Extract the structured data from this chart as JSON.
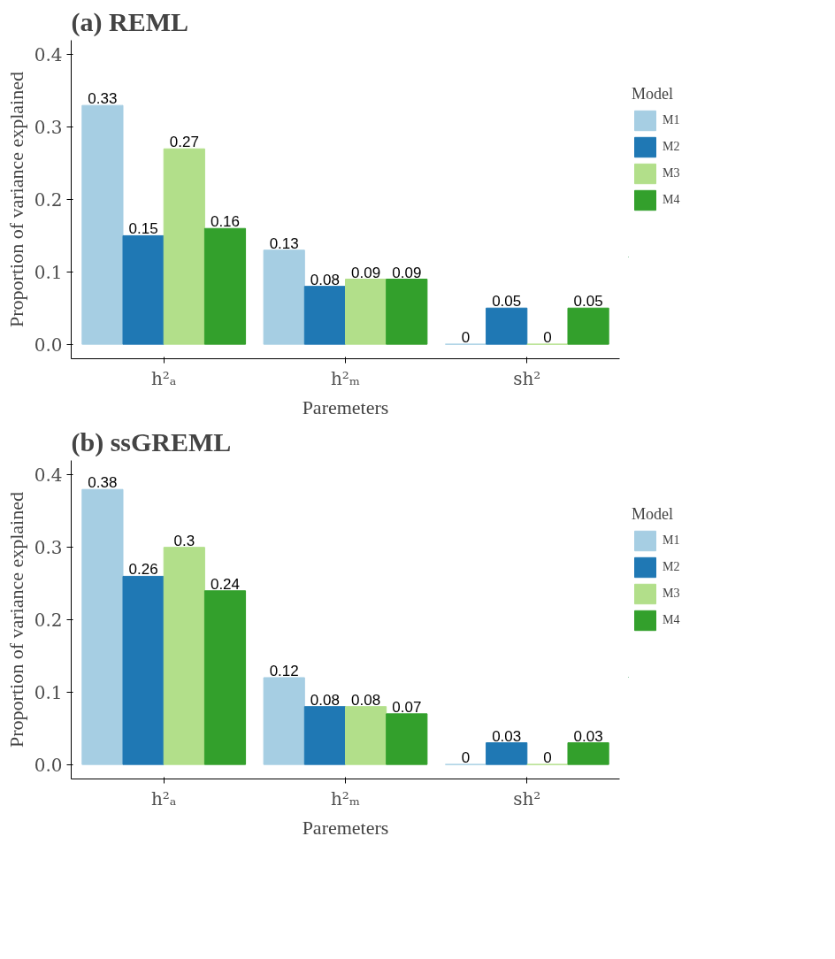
{
  "chart_data": [
    {
      "type": "bar",
      "title": "(a) REML",
      "xlabel": "Paremeters",
      "ylabel": "Proportion of variance explained",
      "legend_title": "Model",
      "categories": [
        "h²ₐ",
        "h²ₘ",
        "sh²"
      ],
      "series": [
        {
          "name": "M1",
          "color": "#a6cee3",
          "values": [
            0.33,
            0.13,
            0
          ]
        },
        {
          "name": "M2",
          "color": "#1f78b4",
          "values": [
            0.15,
            0.08,
            0.05
          ]
        },
        {
          "name": "M3",
          "color": "#b2df8a",
          "values": [
            0.27,
            0.09,
            0
          ]
        },
        {
          "name": "M4",
          "color": "#33a02c",
          "values": [
            0.16,
            0.09,
            0.05
          ]
        }
      ],
      "ylim": [
        -0.02,
        0.42
      ],
      "yticks": [
        {
          "value": 0,
          "label": "0.0"
        },
        0.1,
        0.2,
        0.3,
        0.4
      ],
      "data_labels": true,
      "grid": false,
      "legend": "right"
    },
    {
      "type": "bar",
      "title": "(b) ssGREML",
      "xlabel": "Paremeters",
      "ylabel": "Proportion of variance explained",
      "legend_title": "Model",
      "categories": [
        "h²ₐ",
        "h²ₘ",
        "sh²"
      ],
      "series": [
        {
          "name": "M1",
          "color": "#a6cee3",
          "values": [
            0.38,
            0.12,
            0
          ]
        },
        {
          "name": "M2",
          "color": "#1f78b4",
          "values": [
            0.26,
            0.08,
            0.03
          ]
        },
        {
          "name": "M3",
          "color": "#b2df8a",
          "values": [
            0.3,
            0.08,
            0
          ]
        },
        {
          "name": "M4",
          "color": "#33a02c",
          "values": [
            0.24,
            0.07,
            0.03
          ]
        }
      ],
      "ylim": [
        -0.02,
        0.42
      ],
      "yticks": [
        {
          "value": 0,
          "label": "0.0"
        },
        0.1,
        0.2,
        0.3,
        0.4
      ],
      "data_labels": true,
      "grid": false,
      "legend": "right"
    }
  ]
}
